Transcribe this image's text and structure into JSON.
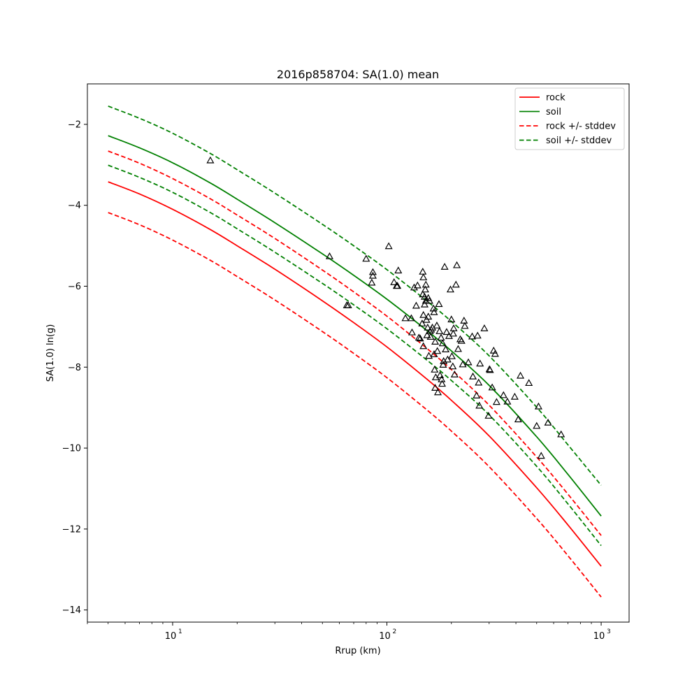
{
  "chart_data": {
    "type": "line",
    "title": "2016p858704: SA(1.0) mean",
    "xlabel": "Rrup (km)",
    "ylabel": "SA(1.0) ln(g)",
    "xscale": "log",
    "xlim": [
      4.0,
      1350
    ],
    "ylim": [
      -14.3,
      -1.0
    ],
    "grid": false,
    "legend_position": "top-right",
    "x_ticks": [
      {
        "value": 10,
        "base": "10",
        "exp": "1"
      },
      {
        "value": 100,
        "base": "10",
        "exp": "2"
      },
      {
        "value": 1000,
        "base": "10",
        "exp": "3"
      }
    ],
    "y_ticks": [
      {
        "value": -14,
        "label": "−14"
      },
      {
        "value": -12,
        "label": "−12"
      },
      {
        "value": -10,
        "label": "−10"
      },
      {
        "value": -8,
        "label": "−8"
      },
      {
        "value": -6,
        "label": "−6"
      },
      {
        "value": -4,
        "label": "−4"
      },
      {
        "value": -2,
        "label": "−2"
      }
    ],
    "x": [
      5,
      7,
      10,
      15,
      20,
      30,
      50,
      70,
      100,
      150,
      200,
      300,
      500,
      700,
      1000
    ],
    "series": [
      {
        "name": "rock",
        "color": "#ff0000",
        "dash": "solid",
        "values": [
          -3.42,
          -3.72,
          -4.1,
          -4.6,
          -5.0,
          -5.58,
          -6.36,
          -6.9,
          -7.5,
          -8.25,
          -8.82,
          -9.7,
          -10.98,
          -11.9,
          -12.92
        ]
      },
      {
        "name": "soil",
        "color": "#008000",
        "dash": "solid",
        "values": [
          -2.28,
          -2.58,
          -2.95,
          -3.45,
          -3.85,
          -4.43,
          -5.2,
          -5.73,
          -6.32,
          -7.05,
          -7.6,
          -8.45,
          -9.72,
          -10.65,
          -11.68
        ]
      },
      {
        "name": "rock +/- stddev",
        "color": "#ff0000",
        "dash": "dashed",
        "values": [
          -2.66,
          -2.96,
          -3.34,
          -3.84,
          -4.24,
          -4.82,
          -5.6,
          -6.14,
          -6.74,
          -7.49,
          -8.06,
          -8.94,
          -10.22,
          -11.14,
          -12.16
        ]
      },
      {
        "color": "#ff0000",
        "dash": "dashed",
        "values": [
          -4.18,
          -4.48,
          -4.86,
          -5.36,
          -5.76,
          -6.34,
          -7.12,
          -7.66,
          -8.26,
          -9.01,
          -9.58,
          -10.46,
          -11.74,
          -12.66,
          -13.68
        ]
      },
      {
        "name": "soil +/- stddev",
        "color": "#008000",
        "dash": "dashed",
        "values": [
          -1.55,
          -1.85,
          -2.22,
          -2.72,
          -3.12,
          -3.7,
          -4.47,
          -5.0,
          -5.59,
          -6.32,
          -6.87,
          -7.72,
          -8.99,
          -9.92,
          -10.92
        ]
      },
      {
        "color": "#008000",
        "dash": "dashed",
        "values": [
          -3.01,
          -3.31,
          -3.68,
          -4.18,
          -4.58,
          -5.16,
          -5.93,
          -6.46,
          -7.05,
          -7.78,
          -8.33,
          -9.18,
          -10.45,
          -11.38,
          -12.41
        ]
      }
    ],
    "scatter": {
      "marker": "open-triangle",
      "color": "#000000",
      "points": [
        [
          15,
          -2.9
        ],
        [
          54,
          -5.27
        ],
        [
          65,
          -6.48
        ],
        [
          66,
          -6.48
        ],
        [
          80,
          -5.33
        ],
        [
          86,
          -5.66
        ],
        [
          86,
          -5.75
        ],
        [
          85,
          -5.92
        ],
        [
          102,
          -5.02
        ],
        [
          108,
          -5.91
        ],
        [
          111,
          -6.0
        ],
        [
          113,
          -5.62
        ],
        [
          112,
          -6.0
        ],
        [
          122,
          -6.8
        ],
        [
          130,
          -6.8
        ],
        [
          131,
          -7.15
        ],
        [
          134,
          -6.04
        ],
        [
          137,
          -6.49
        ],
        [
          139,
          -5.99
        ],
        [
          141,
          -7.28
        ],
        [
          143,
          -7.3
        ],
        [
          146,
          -6.93
        ],
        [
          147,
          -5.65
        ],
        [
          148,
          -5.79
        ],
        [
          147,
          -6.21
        ],
        [
          148,
          -6.72
        ],
        [
          148,
          -7.49
        ],
        [
          150,
          -6.27
        ],
        [
          150,
          -6.46
        ],
        [
          151,
          -6.09
        ],
        [
          152,
          -5.97
        ],
        [
          152,
          -6.37
        ],
        [
          153,
          -6.84
        ],
        [
          154,
          -7.22
        ],
        [
          155,
          -7.03
        ],
        [
          156,
          -6.3
        ],
        [
          156,
          -6.76
        ],
        [
          157,
          -7.73
        ],
        [
          158,
          -6.37
        ],
        [
          159,
          -7.12
        ],
        [
          160,
          -7.26
        ],
        [
          161,
          -7.08
        ],
        [
          163,
          -7.03
        ],
        [
          165,
          -6.56
        ],
        [
          166,
          -6.65
        ],
        [
          166,
          -7.69
        ],
        [
          167,
          -8.07
        ],
        [
          168,
          -7.38
        ],
        [
          168,
          -8.52
        ],
        [
          169,
          -8.26
        ],
        [
          171,
          -6.98
        ],
        [
          172,
          -7.61
        ],
        [
          173,
          -8.63
        ],
        [
          175,
          -6.45
        ],
        [
          176,
          -7.12
        ],
        [
          177,
          -8.21
        ],
        [
          179,
          -7.28
        ],
        [
          180,
          -8.31
        ],
        [
          181,
          -8.42
        ],
        [
          182,
          -7.42
        ],
        [
          183,
          -7.95
        ],
        [
          184,
          -7.86
        ],
        [
          186,
          -5.53
        ],
        [
          188,
          -7.57
        ],
        [
          190,
          -7.14
        ],
        [
          192,
          -7.82
        ],
        [
          195,
          -7.24
        ],
        [
          198,
          -6.09
        ],
        [
          200,
          -6.83
        ],
        [
          201,
          -7.74
        ],
        [
          203,
          -7.99
        ],
        [
          204,
          -7.18
        ],
        [
          205,
          -7.05
        ],
        [
          207,
          -8.19
        ],
        [
          210,
          -5.97
        ],
        [
          212,
          -5.49
        ],
        [
          215,
          -7.56
        ],
        [
          220,
          -7.32
        ],
        [
          223,
          -7.36
        ],
        [
          226,
          -7.94
        ],
        [
          229,
          -6.86
        ],
        [
          231,
          -6.99
        ],
        [
          240,
          -7.89
        ],
        [
          250,
          -7.25
        ],
        [
          252,
          -8.24
        ],
        [
          262,
          -8.71
        ],
        [
          265,
          -7.23
        ],
        [
          268,
          -8.39
        ],
        [
          270,
          -8.96
        ],
        [
          272,
          -7.92
        ],
        [
          285,
          -7.05
        ],
        [
          298,
          -9.21
        ],
        [
          301,
          -8.06
        ],
        [
          303,
          -8.08
        ],
        [
          310,
          -8.51
        ],
        [
          315,
          -7.6
        ],
        [
          320,
          -7.68
        ],
        [
          325,
          -8.87
        ],
        [
          350,
          -8.7
        ],
        [
          365,
          -8.86
        ],
        [
          395,
          -8.74
        ],
        [
          410,
          -9.3
        ],
        [
          420,
          -8.22
        ],
        [
          460,
          -8.4
        ],
        [
          500,
          -9.46
        ],
        [
          510,
          -8.98
        ],
        [
          525,
          -10.2
        ],
        [
          565,
          -9.38
        ],
        [
          650,
          -9.67
        ]
      ]
    }
  }
}
